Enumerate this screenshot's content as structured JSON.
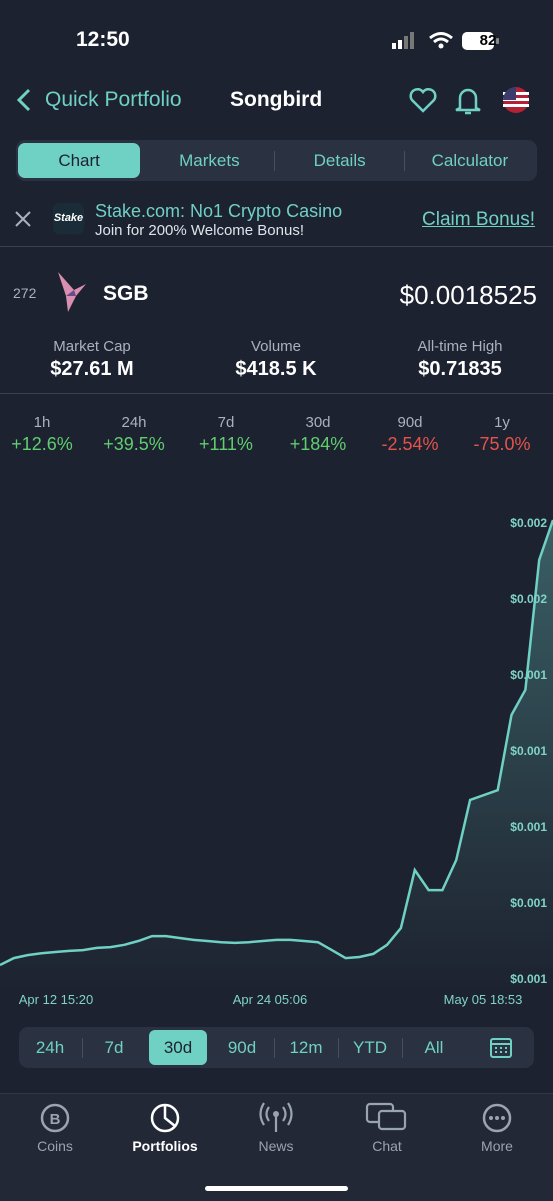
{
  "status": {
    "time": "12:50",
    "battery": "82"
  },
  "header": {
    "back": "Quick Portfolio",
    "title": "Songbird"
  },
  "tabs": {
    "items": [
      "Chart",
      "Markets",
      "Details",
      "Calculator"
    ],
    "active": 0
  },
  "ad": {
    "logo": "Stake",
    "title": "Stake.com: No1 Crypto Casino",
    "subtitle": "Join for 200% Welcome Bonus!",
    "cta": "Claim Bonus!"
  },
  "coin": {
    "rank": "272",
    "symbol": "SGB",
    "price": "$0.0018525"
  },
  "stats": [
    {
      "label": "Market Cap",
      "value": "$27.61 M"
    },
    {
      "label": "Volume",
      "value": "$418.5 K"
    },
    {
      "label": "All-time High",
      "value": "$0.71835"
    }
  ],
  "changes": [
    {
      "period": "1h",
      "value": "+12.6%"
    },
    {
      "period": "24h",
      "value": "+39.5%"
    },
    {
      "period": "7d",
      "value": "+111%"
    },
    {
      "period": "30d",
      "value": "+184%"
    },
    {
      "period": "90d",
      "value": "-2.54%"
    },
    {
      "period": "1y",
      "value": "-75.0%"
    }
  ],
  "chart_data": {
    "type": "line",
    "color": "#6fd0c4",
    "series": [
      {
        "values": [
          0.000658,
          0.000676,
          0.000684,
          0.000689,
          0.000692,
          0.000695,
          0.000697,
          0.000703,
          0.000705,
          0.000711,
          0.000721,
          0.000734,
          0.000734,
          0.000729,
          0.000724,
          0.000721,
          0.000718,
          0.000716,
          0.000718,
          0.000721,
          0.000724,
          0.000724,
          0.000721,
          0.000718,
          0.000697,
          0.000676,
          0.000679,
          0.000687,
          0.000711,
          0.000755,
          0.000908,
          0.000855,
          0.000855,
          0.000934,
          0.001092,
          0.001105,
          0.001118,
          0.001316,
          0.001382,
          0.001724,
          0.001829
        ]
      }
    ],
    "ylim": [
      0.0006,
      0.0018
    ],
    "yticks": [
      {
        "value": 0.0018,
        "label": "$0.002"
      },
      {
        "value": 0.0016,
        "label": "$0.002"
      },
      {
        "value": 0.0014,
        "label": "$0.001"
      },
      {
        "value": 0.0012,
        "label": "$0.001"
      },
      {
        "value": 0.001,
        "label": "$0.001"
      },
      {
        "value": 0.0008,
        "label": "$0.001"
      },
      {
        "value": 0.0006,
        "label": "$0.001"
      }
    ],
    "xlabels": [
      "Apr 12 15:20",
      "Apr 24 05:06",
      "May 05 18:53"
    ]
  },
  "ranges": {
    "items": [
      "24h",
      "7d",
      "30d",
      "90d",
      "12m",
      "YTD",
      "All"
    ],
    "active": 2
  },
  "nav": {
    "items": [
      "Coins",
      "Portfolios",
      "News",
      "Chat",
      "More"
    ],
    "active": 1
  }
}
